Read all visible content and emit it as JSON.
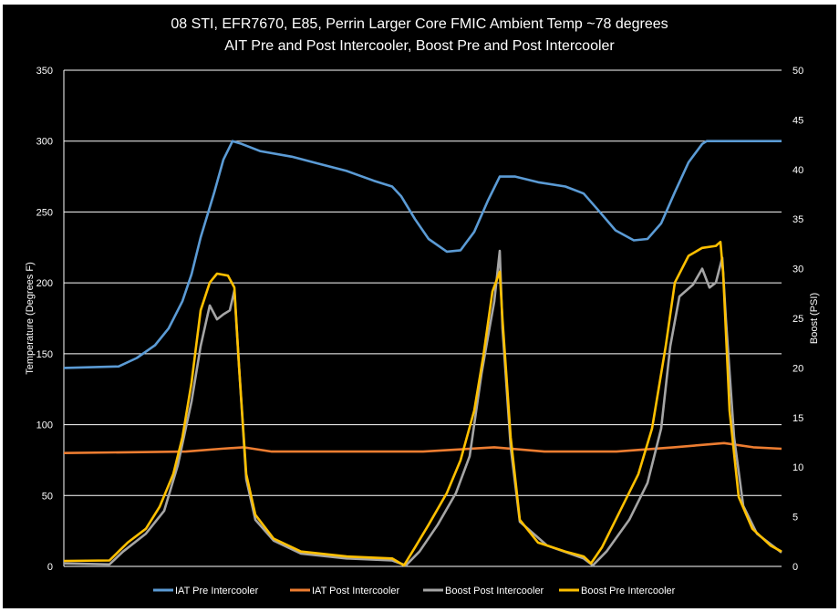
{
  "chart_data": {
    "type": "line",
    "title": "08 STI, EFR7670, E85, Perrin Larger Core FMIC  Ambient Temp ~78 degrees",
    "subtitle": "AIT Pre and Post Intercooler, Boost Pre and Post Intercooler",
    "xlabel": "",
    "xlim": [
      0,
      787
    ],
    "ylabel": "Temperature (Degrees  F)",
    "ylim": [
      0,
      350
    ],
    "yticks": [
      0,
      50,
      100,
      150,
      200,
      250,
      300,
      350
    ],
    "y2label": "Boost (PSI)",
    "y2lim": [
      0,
      50
    ],
    "y2ticks": [
      0,
      5,
      10,
      15,
      20,
      25,
      30,
      35,
      40,
      45,
      50
    ],
    "grid": true,
    "legend_position": "bottom",
    "series": [
      {
        "name": "IAT Pre Intercooler",
        "axis": "left",
        "color": "#5b9bd5",
        "x": [
          0,
          60,
          80,
          100,
          115,
          130,
          140,
          150,
          165,
          175,
          185,
          195,
          215,
          250,
          280,
          310,
          340,
          360,
          370,
          385,
          400,
          420,
          435,
          450,
          465,
          478,
          495,
          520,
          550,
          570,
          585,
          605,
          625,
          640,
          655,
          670,
          685,
          700,
          705,
          787
        ],
        "y": [
          140,
          141,
          147,
          156,
          168,
          187,
          206,
          232,
          264,
          287,
          300,
          298,
          293,
          289,
          284,
          279,
          272,
          268,
          261,
          245,
          231,
          222,
          223,
          236,
          258,
          275,
          275,
          271,
          268,
          263,
          252,
          237,
          230,
          231,
          242,
          264,
          285,
          298,
          300,
          300
        ]
      },
      {
        "name": "IAT Post Intercooler",
        "axis": "left",
        "color": "#ed7d31",
        "x": [
          0,
          134,
          173,
          197,
          228,
          394,
          472,
          527,
          606,
          669,
          724,
          756,
          787
        ],
        "y": [
          80,
          81,
          83,
          84,
          81,
          81,
          84,
          81,
          81,
          84,
          87,
          84,
          83
        ]
      },
      {
        "name": "Boost Post Intercooler",
        "axis": "right",
        "color": "#a5a5a5",
        "x": [
          0,
          50,
          65,
          90,
          110,
          125,
          140,
          150,
          160,
          168,
          175,
          182,
          187,
          192,
          200,
          210,
          230,
          260,
          310,
          360,
          375,
          390,
          410,
          430,
          445,
          458,
          465,
          472,
          478,
          481,
          490,
          500,
          530,
          570,
          580,
          595,
          620,
          640,
          655,
          665,
          675,
          690,
          700,
          708,
          715,
          722,
          726,
          735,
          745,
          760,
          787
        ],
        "y": [
          0.3,
          0.2,
          1.5,
          3.3,
          5.6,
          10.2,
          16.6,
          22.2,
          26.3,
          24.9,
          25.4,
          25.8,
          27.8,
          20.3,
          8.8,
          4.7,
          2.6,
          1.3,
          0.8,
          0.6,
          0.1,
          1.5,
          4.2,
          7.4,
          11.1,
          19.4,
          23.1,
          26.7,
          31.8,
          24,
          12,
          4.5,
          2.1,
          0.8,
          0.1,
          1.5,
          4.7,
          8.4,
          13.9,
          22.2,
          27.2,
          28.4,
          30,
          28.1,
          28.6,
          31.1,
          24.9,
          13,
          6.1,
          3.3,
          1.4
        ]
      },
      {
        "name": "Boost Pre Intercooler",
        "axis": "right",
        "color": "#ffc000",
        "x": [
          0,
          50,
          60,
          70,
          90,
          105,
          120,
          130,
          140,
          150,
          160,
          168,
          180,
          187,
          192,
          200,
          210,
          230,
          260,
          310,
          360,
          373,
          385,
          400,
          420,
          435,
          450,
          460,
          470,
          478,
          481,
          490,
          500,
          520,
          550,
          570,
          578,
          590,
          610,
          630,
          645,
          660,
          670,
          685,
          700,
          715,
          720,
          723,
          730,
          740,
          755,
          775,
          787
        ],
        "y": [
          0.55,
          0.6,
          1.5,
          2.4,
          3.8,
          6,
          9.3,
          13,
          18.5,
          25.8,
          28.6,
          29.5,
          29.3,
          28.1,
          20.3,
          9.3,
          5.2,
          2.8,
          1.5,
          1,
          0.8,
          0.1,
          1.9,
          4.2,
          7.4,
          10.7,
          15.7,
          21.2,
          27.7,
          29.7,
          24.9,
          13,
          4.7,
          2.4,
          1.5,
          1,
          0.3,
          1.9,
          5.6,
          9.3,
          13.9,
          22.2,
          28.6,
          31.3,
          32.1,
          32.3,
          32.7,
          29.5,
          15.7,
          7,
          3.8,
          2.1,
          1.5
        ]
      }
    ]
  }
}
